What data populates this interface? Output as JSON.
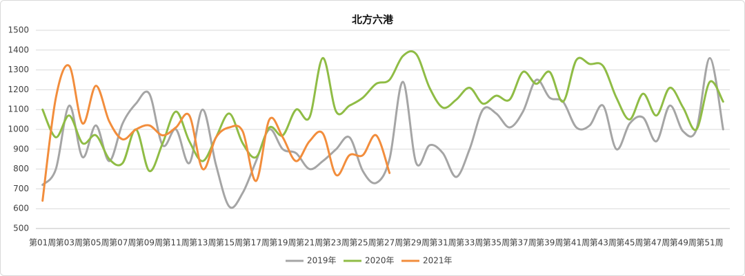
{
  "chart_data": {
    "type": "line",
    "title": "北方六港",
    "categories": [
      "第01周",
      null,
      "第03周",
      null,
      "第05周",
      null,
      "第07周",
      null,
      "第09周",
      null,
      "第11周",
      null,
      "第13周",
      null,
      "第15周",
      null,
      "第17周",
      null,
      "第19周",
      null,
      "第21周",
      null,
      "第23周",
      null,
      "第25周",
      null,
      "第27周",
      null,
      "第29周",
      null,
      "第31周",
      null,
      "第33周",
      null,
      "第35周",
      null,
      "第37周",
      null,
      "第39周",
      null,
      "第41周",
      null,
      "第43周",
      null,
      "第45周",
      null,
      "第47周",
      null,
      "第49周",
      null,
      "第51周",
      null
    ],
    "series": [
      {
        "name": "2019年",
        "color": "#a5a5a5",
        "values": [
          720,
          800,
          1120,
          860,
          1020,
          840,
          1030,
          1130,
          1180,
          920,
          1000,
          830,
          1100,
          820,
          610,
          680,
          840,
          1000,
          900,
          880,
          800,
          840,
          900,
          960,
          790,
          730,
          850,
          1240,
          830,
          920,
          880,
          760,
          900,
          1100,
          1080,
          1010,
          1090,
          1250,
          1160,
          1140,
          1010,
          1020,
          1120,
          900,
          1030,
          1060,
          940,
          1120,
          990,
          1000,
          1360,
          1000
        ]
      },
      {
        "name": "2020年",
        "color": "#8fbc45",
        "values": [
          1100,
          960,
          1070,
          930,
          970,
          850,
          830,
          1000,
          790,
          930,
          1090,
          940,
          840,
          960,
          1080,
          930,
          860,
          1010,
          970,
          1100,
          1060,
          1360,
          1090,
          1120,
          1160,
          1230,
          1250,
          1370,
          1380,
          1210,
          1110,
          1150,
          1210,
          1130,
          1170,
          1150,
          1290,
          1230,
          1290,
          1140,
          1350,
          1330,
          1320,
          1160,
          1050,
          1180,
          1070,
          1210,
          1110,
          1000,
          1240,
          1140
        ]
      },
      {
        "name": "2021年",
        "color": "#f28d3c",
        "values": [
          640,
          1160,
          1320,
          1030,
          1220,
          1040,
          950,
          1000,
          1020,
          970,
          1010,
          1070,
          800,
          960,
          1010,
          990,
          740,
          1050,
          960,
          840,
          940,
          980,
          770,
          870,
          870,
          970,
          780,
          null,
          null,
          null,
          null,
          null,
          null,
          null,
          null,
          null,
          null,
          null,
          null,
          null,
          null,
          null,
          null,
          null,
          null,
          null,
          null,
          null,
          null,
          null,
          null,
          null
        ]
      }
    ],
    "ylim": [
      500,
      1500
    ],
    "yticks": [
      500,
      600,
      700,
      800,
      900,
      1000,
      1100,
      1200,
      1300,
      1400,
      1500
    ],
    "grid": true,
    "legend": "bottom"
  }
}
